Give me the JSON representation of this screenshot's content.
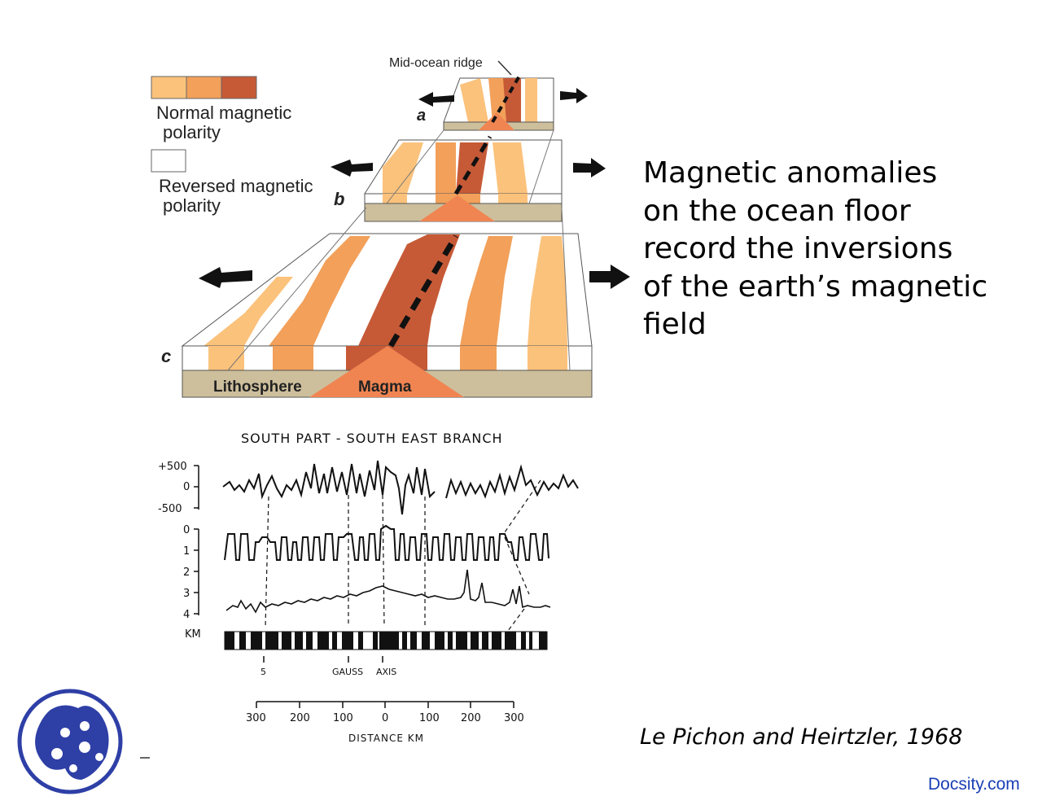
{
  "caption": {
    "lines": [
      "Magnetic anomalies",
      "on the ocean floor",
      "record the inversions",
      "of the earth’s magnetic",
      "field"
    ]
  },
  "citation": "Le Pichon and Heirtzler, 1968",
  "brand": "Docsity.com",
  "diagram": {
    "ridge_label": "Mid-ocean ridge",
    "legend_normal_1": "Normal magnetic",
    "legend_normal_2": "polarity",
    "legend_reversed_1": "Reversed magnetic",
    "legend_reversed_2": "polarity",
    "stage_a": "a",
    "stage_b": "b",
    "stage_c": "c",
    "lithosphere": "Lithosphere",
    "magma": "Magma",
    "colors": {
      "light": "#fbc27c",
      "mid": "#f2a05a",
      "dark": "#c65a37",
      "crust": "#cdbf9c",
      "magma": "#f08552"
    }
  },
  "profile": {
    "title": "SOUTH PART - SOUTH  EAST  BRANCH",
    "y_ticks_top": [
      "+500",
      "0",
      "-500"
    ],
    "y_ticks_depth": [
      "0",
      "1",
      "2",
      "3",
      "4"
    ],
    "km_label": "KM",
    "markers": [
      "5",
      "GAUSS",
      "AXIS"
    ],
    "x_ticks": [
      "300",
      "200",
      "100",
      "0",
      "100",
      "200",
      "300"
    ],
    "x_label": "DISTANCE  KM"
  }
}
